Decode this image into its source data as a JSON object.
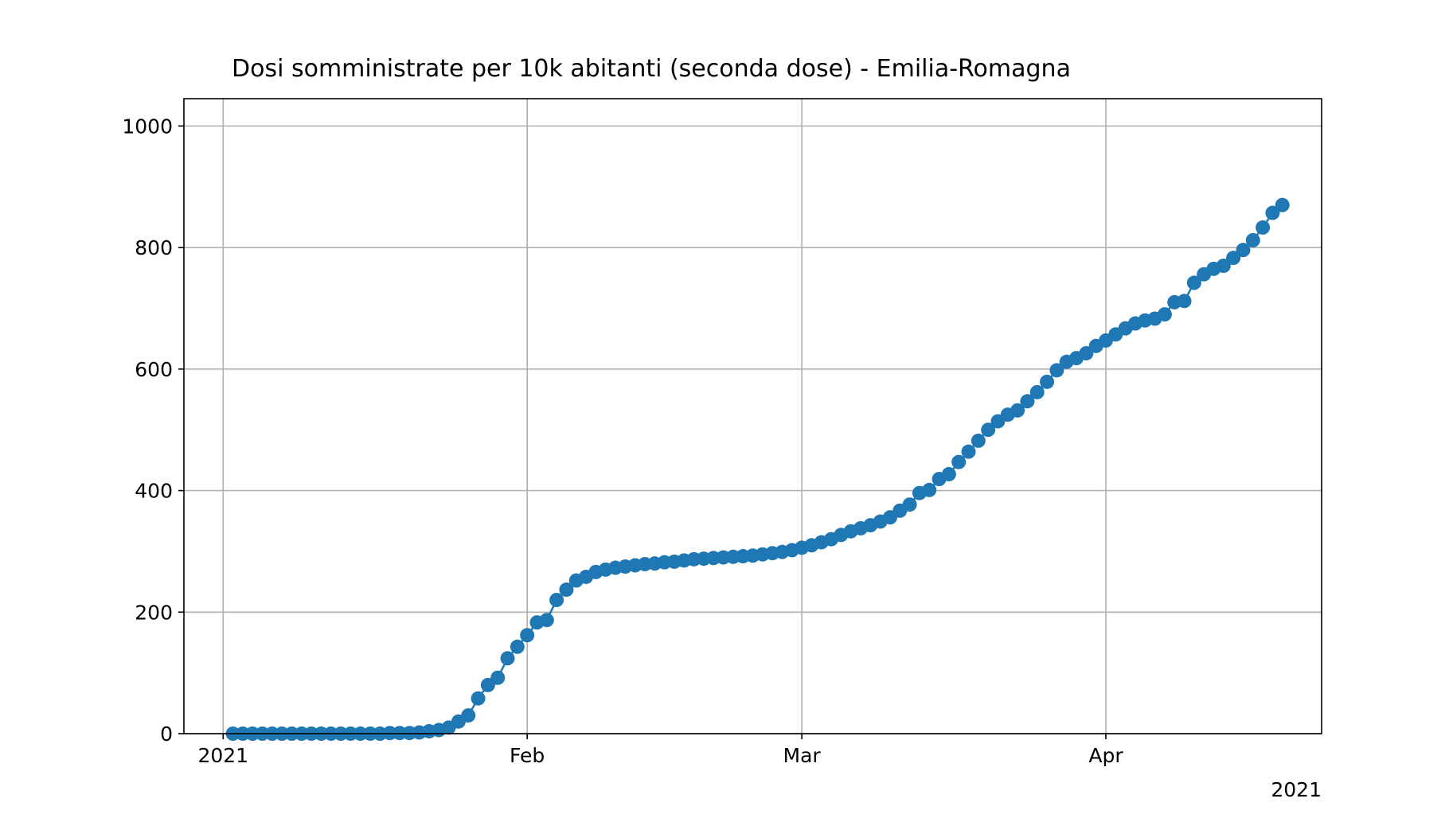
{
  "chart_data": {
    "type": "line",
    "title": "Dosi somministrate per 10k abitanti (seconda dose) - Emilia-Romagna",
    "xlabel": "",
    "ylabel": "",
    "x_tick_labels": [
      "2021",
      "Feb",
      "Mar",
      "Apr"
    ],
    "x_ticks": [
      "2021-01-01",
      "2021-02-01",
      "2021-03-01",
      "2021-04-01"
    ],
    "x_offset_label": "2021",
    "y_ticks": [
      0,
      200,
      400,
      600,
      800,
      1000
    ],
    "xlim": [
      "2020-12-28",
      "2021-04-23"
    ],
    "ylim": [
      0,
      1045
    ],
    "grid": true,
    "marker": "circle",
    "color": "#1f77b4",
    "series": [
      {
        "start_date": "2021-01-02",
        "values": [
          0,
          0,
          0,
          0,
          0,
          0,
          0,
          0,
          0,
          0,
          0,
          0,
          0,
          0,
          0,
          0,
          1,
          1,
          1,
          2,
          4,
          6,
          10,
          20,
          30,
          58,
          80,
          92,
          124,
          143,
          162,
          183,
          187,
          220,
          237,
          252,
          258,
          266,
          270,
          273,
          275,
          277,
          279,
          280,
          282,
          283,
          285,
          287,
          288,
          289,
          290,
          291,
          292,
          293,
          295,
          297,
          299,
          302,
          306,
          310,
          315,
          320,
          327,
          333,
          338,
          343,
          349,
          356,
          367,
          377,
          396,
          401,
          419,
          427,
          447,
          464,
          482,
          500,
          514,
          525,
          532,
          547,
          562,
          579,
          598,
          612,
          618,
          626,
          638,
          647,
          657,
          667,
          675,
          680,
          683,
          690,
          710,
          712,
          742,
          756,
          765,
          770,
          783,
          796,
          812,
          833,
          857,
          870
        ]
      }
    ]
  }
}
